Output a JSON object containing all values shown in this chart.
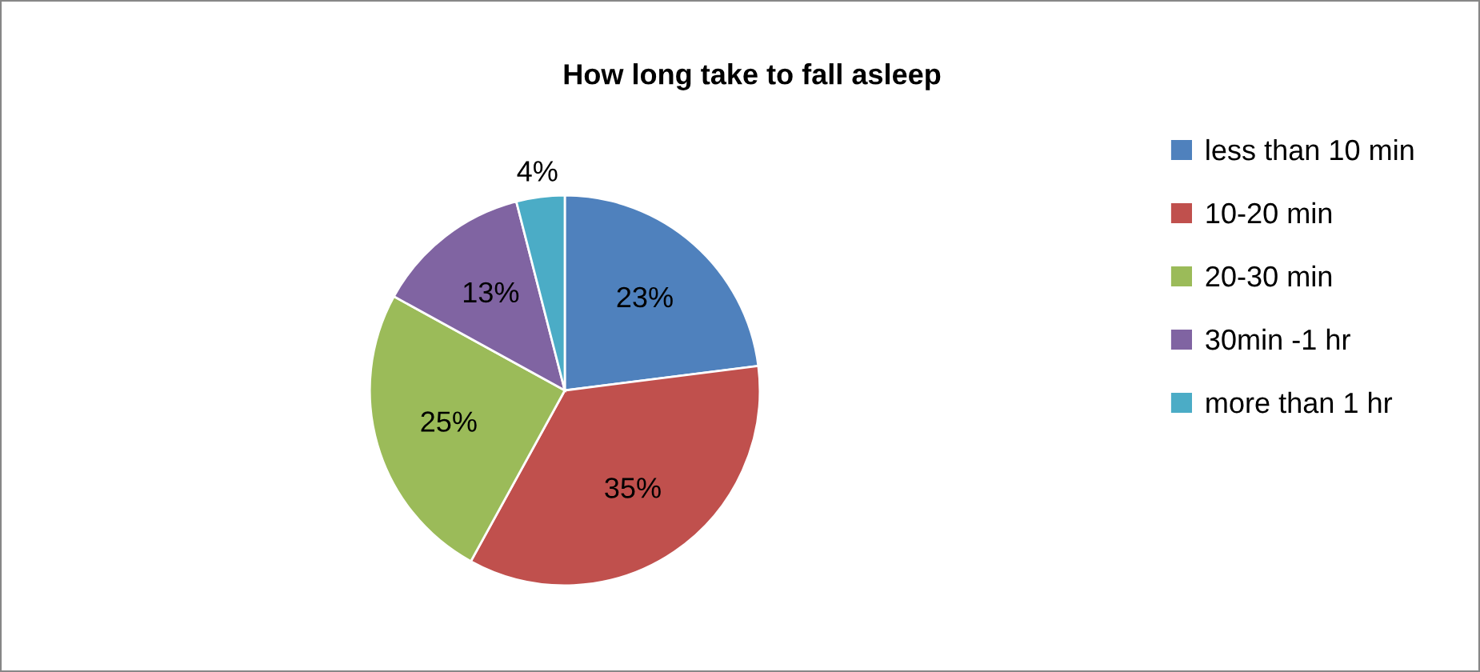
{
  "chart_data": {
    "type": "pie",
    "title": "How long take to fall asleep",
    "categories": [
      "less than 10 min",
      "10-20 min",
      "20-30 min",
      "30min -1 hr",
      "more than 1 hr"
    ],
    "values": [
      23,
      35,
      25,
      13,
      4
    ],
    "colors": [
      "#4f81bd",
      "#c0504d",
      "#9bbb59",
      "#8064a2",
      "#4bacc6"
    ],
    "value_labels": [
      "23%",
      "35%",
      "25%",
      "13%",
      "4%"
    ],
    "legend": "right"
  }
}
